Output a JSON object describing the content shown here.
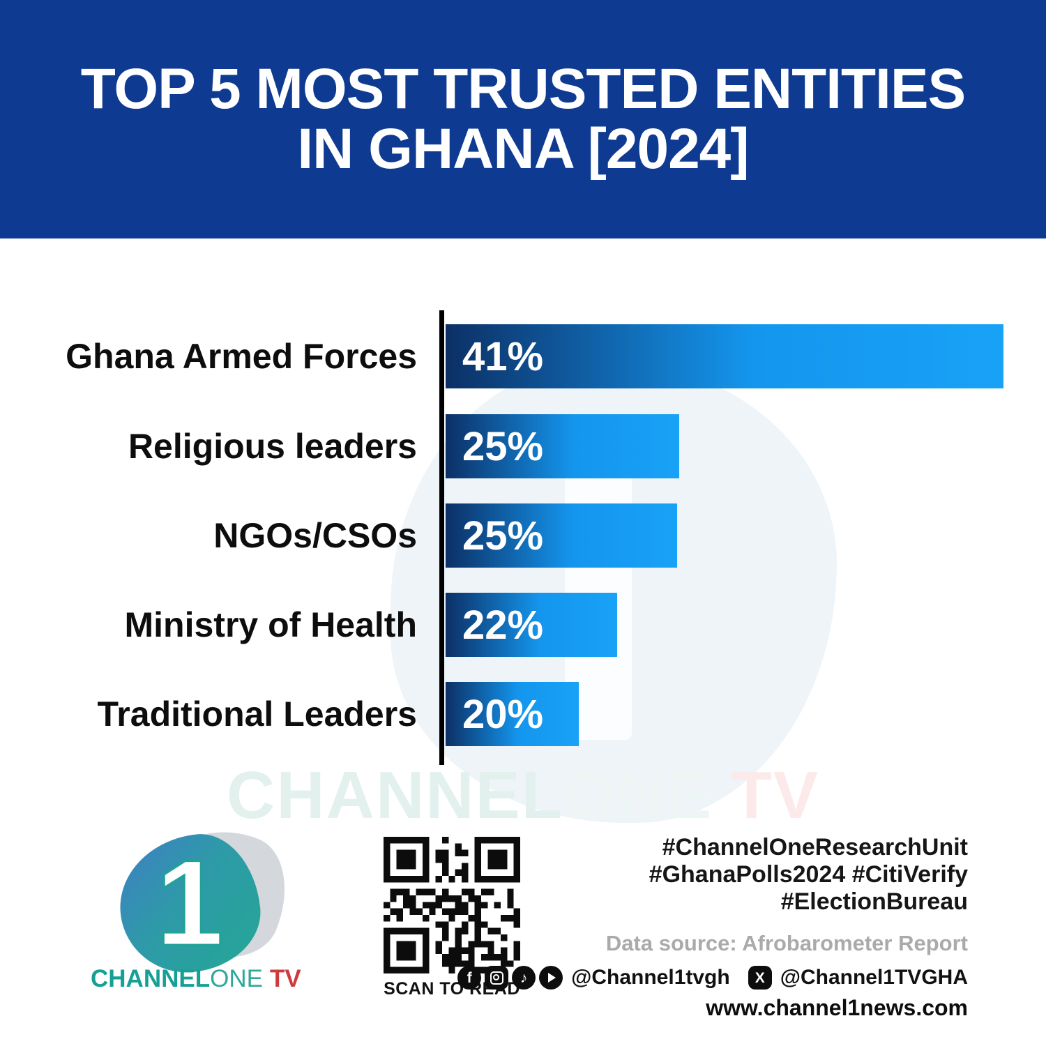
{
  "header": {
    "title_line1": "TOP 5 MOST TRUSTED ENTITIES",
    "title_line2": "IN GHANA [2024]"
  },
  "chart_data": {
    "type": "bar",
    "orientation": "horizontal",
    "title": "Top 5 most trusted entities in Ghana [2024]",
    "categories": [
      "Ghana Armed Forces",
      "Religious leaders",
      "NGOs/CSOs",
      "Ministry of Health",
      "Traditional Leaders"
    ],
    "values": [
      41,
      25,
      25,
      22,
      20
    ],
    "value_labels": [
      "41%",
      "25%",
      "25%",
      "22%",
      "20%"
    ],
    "unit": "%",
    "xlabel": "",
    "ylabel": "",
    "grid": false,
    "legend": false,
    "axis_color": "#000000",
    "bar_gradient": [
      "#0c3066",
      "#18a2f6"
    ],
    "note": "bars in source graphic are not drawn to numeric scale",
    "bar_length_pct_of_max": [
      100,
      41.9,
      41.5,
      30.8,
      23.9
    ]
  },
  "watermark": {
    "part1": "CHANNEL",
    "part2": "ONE",
    "part3": "TV"
  },
  "footer": {
    "logo": {
      "numeral": "1",
      "brand_part1": "CHANNEL",
      "brand_part2": "ONE",
      "brand_part3": "TV"
    },
    "qr_caption": "SCAN TO READ",
    "hashtags_line1": "#ChannelOneResearchUnit",
    "hashtags_line2": "#GhanaPolls2024 #CitiVerify",
    "hashtags_line3": "#ElectionBureau",
    "data_source": "Data source: Afrobarometer Report",
    "social": {
      "icons": [
        "facebook-icon",
        "instagram-icon",
        "tiktok-icon",
        "youtube-icon",
        "x-icon"
      ],
      "handle_main": "@Channel1tvgh",
      "handle_x": "@Channel1TVGHA"
    },
    "website": "www.channel1news.com"
  },
  "colors": {
    "header_bg": "#0e3a91",
    "bar_start": "#0c3066",
    "bar_end": "#18a2f6",
    "label_text": "#0d0d0d",
    "hashtag_text": "#161616",
    "muted_text": "#a8aaac",
    "logo_teal": "#16a095",
    "logo_red": "#cf3a41"
  }
}
